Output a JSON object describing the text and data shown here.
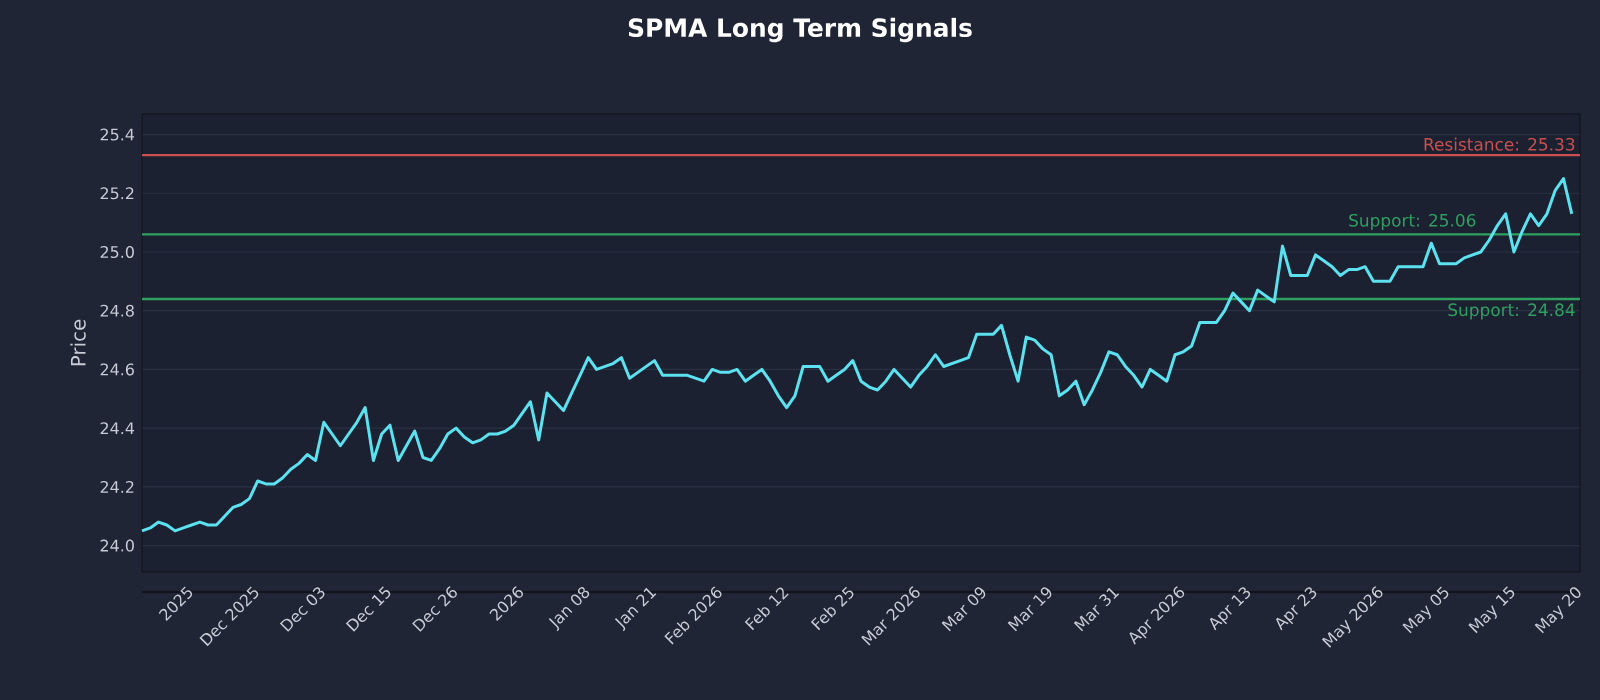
{
  "chart_data": {
    "type": "line",
    "title": "SPMA Long Term Signals",
    "ylabel": "Price",
    "categories": [
      null,
      null,
      null,
      null,
      null,
      "2025",
      null,
      null,
      null,
      null,
      null,
      null,
      null,
      "Dec 2025",
      null,
      null,
      null,
      null,
      null,
      null,
      null,
      "Dec 03",
      null,
      null,
      null,
      null,
      null,
      null,
      null,
      "Dec 15",
      null,
      null,
      null,
      null,
      null,
      null,
      null,
      "Dec 26",
      null,
      null,
      null,
      null,
      null,
      null,
      null,
      "2026",
      null,
      null,
      null,
      null,
      null,
      null,
      null,
      "Jan 08",
      null,
      null,
      null,
      null,
      null,
      null,
      null,
      "Jan 21",
      null,
      null,
      null,
      null,
      null,
      null,
      null,
      "Feb 2026",
      null,
      null,
      null,
      null,
      null,
      null,
      null,
      "Feb 12",
      null,
      null,
      null,
      null,
      null,
      null,
      null,
      "Feb 25",
      null,
      null,
      null,
      null,
      null,
      null,
      null,
      "Mar 2026",
      null,
      null,
      null,
      null,
      null,
      null,
      null,
      "Mar 09",
      null,
      null,
      null,
      null,
      null,
      null,
      null,
      "Mar 19",
      null,
      null,
      null,
      null,
      null,
      null,
      null,
      "Mar 31",
      null,
      null,
      null,
      null,
      null,
      null,
      null,
      "Apr 2026",
      null,
      null,
      null,
      null,
      null,
      null,
      null,
      "Apr 13",
      null,
      null,
      null,
      null,
      null,
      null,
      null,
      "Apr 23",
      null,
      null,
      null,
      null,
      null,
      null,
      null,
      "May 2026",
      null,
      null,
      null,
      null,
      null,
      null,
      null,
      "May 05",
      null,
      null,
      null,
      null,
      null,
      null,
      null,
      "May 15",
      null,
      null,
      null,
      null,
      null,
      null,
      null,
      "May 20"
    ],
    "series": [
      {
        "color": "#5ce1f0",
        "values": [
          24.05,
          24.06,
          24.08,
          24.07,
          24.05,
          24.06,
          24.07,
          24.08,
          24.07,
          24.07,
          24.1,
          24.13,
          24.14,
          24.16,
          24.22,
          24.21,
          24.21,
          24.23,
          24.26,
          24.28,
          24.31,
          24.29,
          24.42,
          24.38,
          24.34,
          24.38,
          24.42,
          24.47,
          24.29,
          24.38,
          24.41,
          24.29,
          24.34,
          24.39,
          24.3,
          24.29,
          24.33,
          24.38,
          24.4,
          24.37,
          24.35,
          24.36,
          24.38,
          24.38,
          24.39,
          24.41,
          24.45,
          24.49,
          24.36,
          24.52,
          24.49,
          24.46,
          24.52,
          24.58,
          24.64,
          24.6,
          24.61,
          24.62,
          24.64,
          24.57,
          24.59,
          24.61,
          24.63,
          24.58,
          24.58,
          24.58,
          24.58,
          24.57,
          24.56,
          24.6,
          24.59,
          24.59,
          24.6,
          24.56,
          24.58,
          24.6,
          24.56,
          24.51,
          24.47,
          24.51,
          24.61,
          24.61,
          24.61,
          24.56,
          24.58,
          24.6,
          24.63,
          24.56,
          24.54,
          24.53,
          24.56,
          24.6,
          24.57,
          24.54,
          24.58,
          24.61,
          24.65,
          24.61,
          24.62,
          24.63,
          24.64,
          24.72,
          24.72,
          24.72,
          24.75,
          24.65,
          24.56,
          24.71,
          24.7,
          24.67,
          24.65,
          24.51,
          24.53,
          24.56,
          24.48,
          24.53,
          24.59,
          24.66,
          24.65,
          24.61,
          24.58,
          24.54,
          24.6,
          24.58,
          24.56,
          24.65,
          24.66,
          24.68,
          24.76,
          24.76,
          24.76,
          24.8,
          24.86,
          24.83,
          24.8,
          24.87,
          24.85,
          24.83,
          25.02,
          24.92,
          24.92,
          24.92,
          24.99,
          24.97,
          24.95,
          24.92,
          24.94,
          24.94,
          24.95,
          24.9,
          24.9,
          24.9,
          24.95,
          24.95,
          24.95,
          24.95,
          25.03,
          24.96,
          24.96,
          24.96,
          24.98,
          24.99,
          25.0,
          25.04,
          25.09,
          25.13,
          25.0,
          25.07,
          25.13,
          25.09,
          25.13,
          25.21,
          25.25,
          25.13
        ]
      }
    ],
    "ylim": [
      23.91,
      25.47
    ],
    "yticks": [
      {
        "value": 24,
        "label": "24.0"
      },
      24.2,
      24.4,
      24.6,
      24.8,
      {
        "value": 25,
        "label": "25.0"
      },
      25.2,
      25.4
    ],
    "grid": "y",
    "line_style": "solid",
    "marker": "none",
    "ref_lines": [
      {
        "axis": "y",
        "value": 25.33,
        "label": "Resistance: 25.33",
        "color": "#c9504f"
      },
      {
        "axis": "y",
        "value": 25.06,
        "label": "Support: 25.06",
        "color": "#2fa060"
      },
      {
        "axis": "y",
        "value": 24.84,
        "label": "Support: 24.84",
        "color": "#2fa060"
      }
    ]
  }
}
